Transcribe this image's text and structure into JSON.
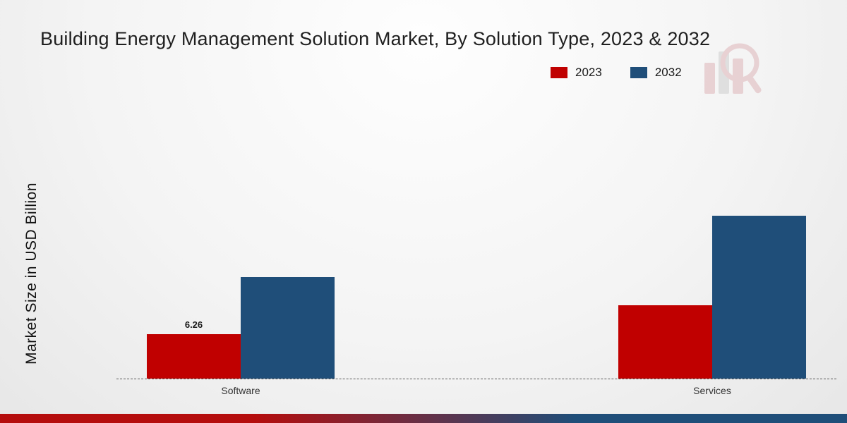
{
  "page": {
    "background_center": "#fefefe",
    "background_edge": "#e7e7e7"
  },
  "icons": {
    "watermark_icon": "bar-chart-magnifier-icon"
  },
  "chart_data": {
    "type": "bar",
    "title": "Building Energy Management Solution Market, By Solution Type, 2023 & 2032",
    "ylabel": "Market Size in USD Billion",
    "xlabel": "",
    "categories": [
      "Software",
      "Services"
    ],
    "series": [
      {
        "name": "2023",
        "color": "#c00000",
        "values": [
          6.26,
          10.4
        ],
        "value_labels": [
          "6.26",
          ""
        ]
      },
      {
        "name": "2032",
        "color": "#1f4e79",
        "values": [
          14.4,
          23.1
        ],
        "value_labels": [
          "",
          ""
        ]
      }
    ],
    "ylim": [
      0,
      26
    ],
    "grid": false,
    "legend_position": "top-right",
    "baseline_style": "dashed",
    "footer_gradient": [
      "#b50d0d",
      "#1f4e79"
    ]
  }
}
